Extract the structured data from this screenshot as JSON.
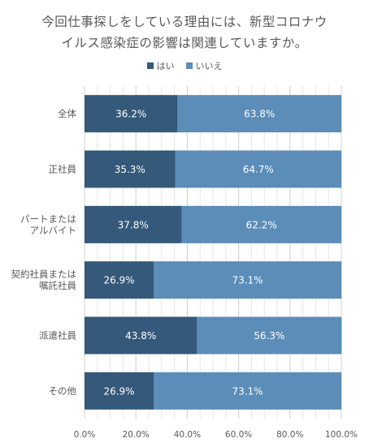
{
  "title": [
    "今回仕事探しをしている理由には、新型コロナウ",
    "イルス感染症の影響は関連していますか。"
  ],
  "legend": [
    {
      "name": "はい",
      "color": "#34597a"
    },
    {
      "name": "いいえ",
      "color": "#5b8db8"
    }
  ],
  "chart_data": {
    "type": "bar",
    "orientation": "horizontal",
    "stacked": true,
    "title": "今回仕事探しをしている理由には、新型コロナウイルス感染症の影響は関連していますか。",
    "categories": [
      [
        "全体"
      ],
      [
        "正社員"
      ],
      [
        "パートまたは",
        "アルバイト"
      ],
      [
        "契約社員または",
        "嘱託社員"
      ],
      [
        "派遣社員"
      ],
      [
        "その他"
      ]
    ],
    "series": [
      {
        "name": "はい",
        "color": "#34597a",
        "values": [
          36.2,
          35.3,
          37.8,
          26.9,
          43.8,
          26.9
        ]
      },
      {
        "name": "いいえ",
        "color": "#5b8db8",
        "values": [
          63.8,
          64.7,
          62.2,
          73.1,
          56.3,
          73.1
        ]
      }
    ],
    "xlim": [
      0,
      100
    ],
    "x_ticks": [
      "0.0%",
      "20.0%",
      "40.0%",
      "60.0%",
      "80.0%",
      "100.0%"
    ],
    "grid": true,
    "legend_position": "top"
  }
}
